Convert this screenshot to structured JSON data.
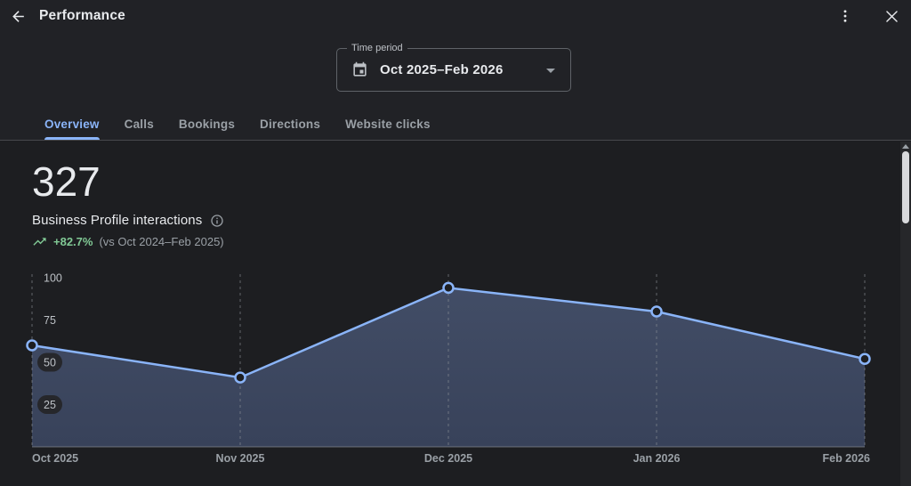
{
  "window": {
    "title": "Performance"
  },
  "header": {
    "back_icon": "arrow-back",
    "more_icon": "kebab-menu",
    "close_icon": "close-x"
  },
  "time_period": {
    "label": "Time period",
    "value": "Oct 2025–Feb 2026",
    "icon": "calendar-event"
  },
  "tabs": {
    "items": [
      {
        "label": "Overview",
        "active": true
      },
      {
        "label": "Calls",
        "active": false
      },
      {
        "label": "Bookings",
        "active": false
      },
      {
        "label": "Directions",
        "active": false
      },
      {
        "label": "Website clicks",
        "active": false
      }
    ]
  },
  "metric": {
    "value": "327",
    "label": "Business Profile interactions",
    "info_icon": "info-outline",
    "trend_icon": "trending-up",
    "change": "+82.7%",
    "comparison": "(vs Oct 2024–Feb 2025)"
  },
  "chart_data": {
    "type": "area",
    "title": "Business Profile interactions by month",
    "categories": [
      "Oct 2025",
      "Nov 2025",
      "Dec 2025",
      "Jan 2026",
      "Feb 2026"
    ],
    "values": [
      60,
      41,
      94,
      80,
      52
    ],
    "total": 327,
    "xlabel": "",
    "ylabel": "",
    "ylim": [
      0,
      100
    ],
    "yticks": [
      25,
      50,
      75,
      100
    ],
    "grid": "dashed-vertical-lines-at-each-point",
    "legend": "none",
    "line_color": "#8ab4f8",
    "marker_style": "open-circle"
  },
  "colors": {
    "accent": "#8ab4f8",
    "positive": "#81c995",
    "text_primary": "#e8eaed",
    "text_secondary": "#9aa0a6",
    "bg_top": "#212226",
    "bg_content": "#1d1e21",
    "divider": "#47484c",
    "area_fill_top": "#424d66",
    "area_fill_bottom": "#38425a"
  },
  "scrollbar": {
    "up_icon": "scroll-up-arrow"
  }
}
